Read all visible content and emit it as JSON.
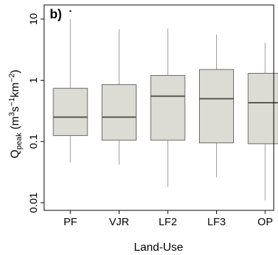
{
  "chart_data": {
    "type": "box",
    "panel_label": "b)",
    "xlabel": "Land-Use",
    "ylabel": {
      "base": "Q",
      "sub": "peak",
      "units": [
        {
          "text": " (m"
        },
        {
          "text": "3",
          "sup": true
        },
        {
          "text": "s"
        },
        {
          "text": "−1",
          "sup": true
        },
        {
          "text": "km"
        },
        {
          "text": "−2",
          "sup": true
        },
        {
          "text": ")"
        }
      ]
    },
    "y_scale": "log",
    "ylim": [
      0.0075,
      17
    ],
    "y_ticks": [
      {
        "value": 0.01,
        "label": "0.01"
      },
      {
        "value": 0.1,
        "label": "0.1"
      },
      {
        "value": 1,
        "label": "1"
      },
      {
        "value": 10,
        "label": "10"
      }
    ],
    "grid": false,
    "colors": {
      "box_fill": "#dcdcd4",
      "box_stroke": "#666666",
      "median": "#555555",
      "whisker": "#9a9a9a",
      "frame": "#000000"
    },
    "categories": [
      "PF",
      "VJR",
      "LF2",
      "LF3",
      "OP"
    ],
    "boxes": [
      {
        "category": "PF",
        "whisker_low": 0.045,
        "q1": 0.125,
        "median": 0.25,
        "q3": 0.74,
        "whisker_high": 10.0,
        "outliers": [
          13.5
        ]
      },
      {
        "category": "VJR",
        "whisker_low": 0.042,
        "q1": 0.105,
        "median": 0.25,
        "q3": 0.85,
        "whisker_high": 6.8,
        "outliers": []
      },
      {
        "category": "LF2",
        "whisker_low": 0.018,
        "q1": 0.105,
        "median": 0.55,
        "q3": 1.2,
        "whisker_high": 7.0,
        "outliers": []
      },
      {
        "category": "LF3",
        "whisker_low": 0.026,
        "q1": 0.095,
        "median": 0.5,
        "q3": 1.5,
        "whisker_high": 5.6,
        "outliers": []
      },
      {
        "category": "OP",
        "whisker_low": 0.011,
        "q1": 0.092,
        "median": 0.43,
        "q3": 1.3,
        "whisker_high": 4.1,
        "outliers": []
      }
    ]
  }
}
